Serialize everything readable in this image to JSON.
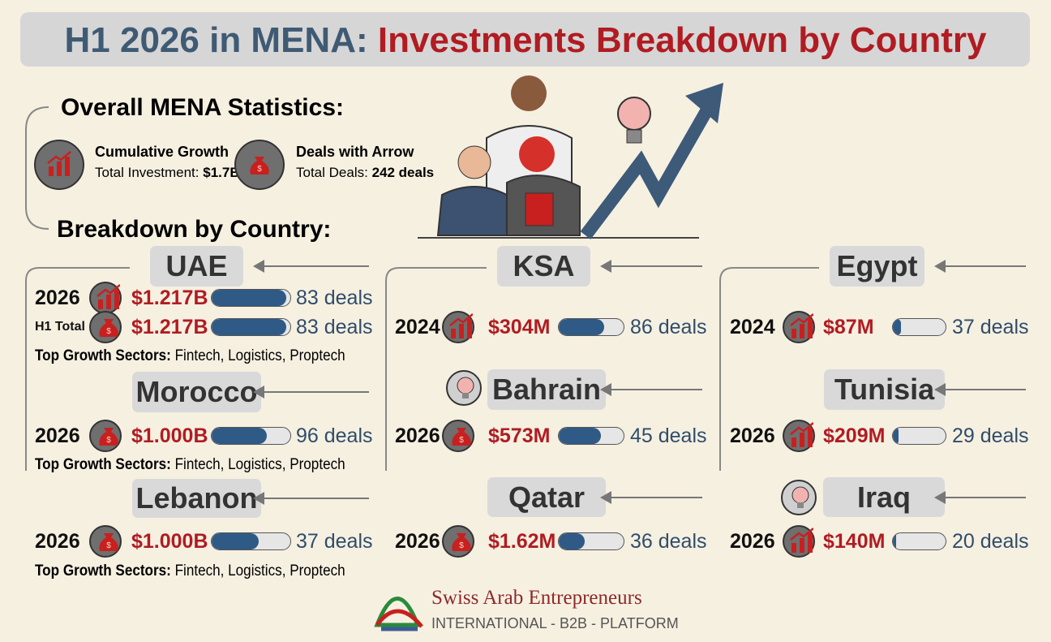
{
  "title": {
    "part1": "H1 2026 in MENA:",
    "part2": "Investments Breakdown by Country"
  },
  "overall": {
    "heading": "Overall MENA Statistics:",
    "stats": [
      {
        "title": "Cumulative Growth",
        "label": "Total Investment:",
        "value": "$1.7B"
      },
      {
        "title": "Deals with Arrow",
        "label": "Total Deals:",
        "value": "242 deals"
      }
    ]
  },
  "breakdown_heading": "Breakdown by Country:",
  "countries": [
    {
      "name": "UAE",
      "rows": [
        {
          "year": "2026",
          "amount": "$1.217B",
          "deals": "83 deals"
        },
        {
          "year": "H1 Total",
          "amount": "$1.217B",
          "deals": "83 deals"
        }
      ],
      "sectors_label": "Top Growth Sectors:",
      "sectors": "Fintech, Logistics, Proptech"
    },
    {
      "name": "Morocco",
      "rows": [
        {
          "year": "2026",
          "amount": "$1.000B",
          "deals": "96 deals"
        }
      ],
      "sectors_label": "Top Growth Sectors:",
      "sectors": "Fintech, Logistics, Proptech"
    },
    {
      "name": "Lebanon",
      "rows": [
        {
          "year": "2026",
          "amount": "$1.000B",
          "deals": "37 deals"
        }
      ],
      "sectors_label": "Top Growth Sectors:",
      "sectors": "Fintech, Logistics, Proptech"
    },
    {
      "name": "KSA",
      "rows": [
        {
          "year": "2024",
          "amount": "$304M",
          "deals": "86 deals"
        }
      ]
    },
    {
      "name": "Bahrain",
      "rows": [
        {
          "year": "2026",
          "amount": "$573M",
          "deals": "45 deals"
        }
      ]
    },
    {
      "name": "Qatar",
      "rows": [
        {
          "year": "2026",
          "amount": "$1.62M",
          "deals": "36 deals"
        }
      ]
    },
    {
      "name": "Egypt",
      "rows": [
        {
          "year": "2024",
          "amount": "$87M",
          "deals": "37 deals"
        }
      ]
    },
    {
      "name": "Tunisia",
      "rows": [
        {
          "year": "2026",
          "amount": "$209M",
          "deals": "29 deals"
        }
      ]
    },
    {
      "name": "Iraq",
      "rows": [
        {
          "year": "2026",
          "amount": "$140M",
          "deals": "20 deals"
        }
      ]
    }
  ],
  "footer": {
    "brand": "Swiss Arab Entrepreneurs",
    "tagline": "INTERNATIONAL - B2B - PLATFORM"
  }
}
